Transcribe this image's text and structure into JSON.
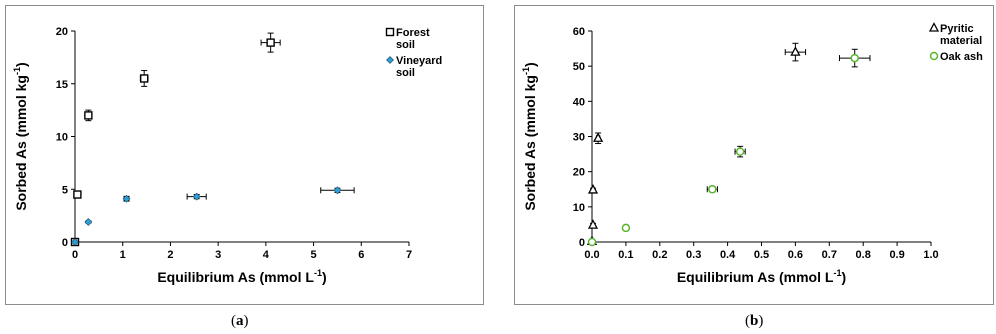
{
  "chart_data": [
    {
      "type": "scatter",
      "panel_label": "a",
      "xlabel": "Equilibrium As (mmol L",
      "xlabel_sup": "-1",
      "xlabel_end": ")",
      "ylabel": "Sorbed As (mmol kg",
      "ylabel_sup": "-1",
      "ylabel_end": ")",
      "xlim": [
        0,
        7
      ],
      "ylim": [
        0,
        20
      ],
      "xticks": [
        0,
        1,
        2,
        3,
        4,
        5,
        6,
        7
      ],
      "yticks": [
        0,
        5,
        10,
        15,
        20
      ],
      "legend_position": "top-right",
      "series": [
        {
          "name": "Forest soil",
          "legend_lines": [
            "Forest",
            "soil"
          ],
          "marker": "square-open",
          "color": "#000000",
          "points": [
            {
              "x": 0.0,
              "y": 0.0,
              "xerr": 0.0,
              "yerr": 0.1
            },
            {
              "x": 0.05,
              "y": 4.5,
              "xerr": 0.05,
              "yerr": 0.25
            },
            {
              "x": 0.28,
              "y": 12.0,
              "xerr": 0.05,
              "yerr": 0.5
            },
            {
              "x": 1.45,
              "y": 15.5,
              "xerr": 0.08,
              "yerr": 0.75
            },
            {
              "x": 4.1,
              "y": 18.9,
              "xerr": 0.2,
              "yerr": 0.9
            }
          ]
        },
        {
          "name": "Vineyard soil",
          "legend_lines": [
            "Vineyard",
            "soil"
          ],
          "marker": "diamond",
          "color": "#2e9ed6",
          "points": [
            {
              "x": 0.0,
              "y": 0.0,
              "xerr": 0.0,
              "yerr": 0.0
            },
            {
              "x": 0.28,
              "y": 1.9,
              "xerr": 0.0,
              "yerr": 0.1
            },
            {
              "x": 1.08,
              "y": 4.1,
              "xerr": 0.05,
              "yerr": 0.2
            },
            {
              "x": 2.55,
              "y": 4.3,
              "xerr": 0.2,
              "yerr": 0.2
            },
            {
              "x": 5.5,
              "y": 4.9,
              "xerr": 0.35,
              "yerr": 0.2
            }
          ]
        }
      ]
    },
    {
      "type": "scatter",
      "panel_label": "b",
      "xlabel": "Equilibrium As (mmol L",
      "xlabel_sup": "-1",
      "xlabel_end": ")",
      "ylabel": "Sorbed As (mmol kg",
      "ylabel_sup": "-1",
      "ylabel_end": ")",
      "xlim": [
        0,
        1
      ],
      "ylim": [
        0,
        60
      ],
      "xticks": [
        0.0,
        0.1,
        0.2,
        0.3,
        0.4,
        0.5,
        0.6,
        0.7,
        0.8,
        0.9,
        1.0
      ],
      "xtick_labels": [
        "0.0",
        "0.1",
        "0.2",
        "0.3",
        "0.4",
        "0.5",
        "0.6",
        "0.7",
        "0.8",
        "0.9",
        "1.0"
      ],
      "yticks": [
        0,
        10,
        20,
        30,
        40,
        50,
        60
      ],
      "legend_position": "top-right",
      "series": [
        {
          "name": "Pyritic material",
          "legend_lines": [
            "Pyritic",
            "material"
          ],
          "marker": "triangle-open",
          "color": "#000000",
          "points": [
            {
              "x": 0.0,
              "y": 0.2,
              "xerr": 0.0,
              "yerr": 0.3
            },
            {
              "x": 0.003,
              "y": 4.8,
              "xerr": 0.0,
              "yerr": 0.5
            },
            {
              "x": 0.003,
              "y": 14.8,
              "xerr": 0.0,
              "yerr": 0.5
            },
            {
              "x": 0.018,
              "y": 29.5,
              "xerr": 0.005,
              "yerr": 1.5
            },
            {
              "x": 0.6,
              "y": 54.0,
              "xerr": 0.03,
              "yerr": 2.5
            }
          ]
        },
        {
          "name": "Oak ash",
          "legend_lines": [
            "Oak ash"
          ],
          "marker": "circle-open",
          "color": "#5ab52e",
          "points": [
            {
              "x": 0.0,
              "y": 0.0,
              "xerr": 0.0,
              "yerr": 0.0
            },
            {
              "x": 0.1,
              "y": 4.0,
              "xerr": 0.005,
              "yerr": 0.4
            },
            {
              "x": 0.355,
              "y": 15.0,
              "xerr": 0.015,
              "yerr": 0.8
            },
            {
              "x": 0.437,
              "y": 25.7,
              "xerr": 0.015,
              "yerr": 1.5
            },
            {
              "x": 0.775,
              "y": 52.3,
              "xerr": 0.045,
              "yerr": 2.5
            }
          ]
        }
      ]
    }
  ],
  "captions": [
    {
      "open": "(",
      "label": "a",
      "close": ")"
    },
    {
      "open": "(",
      "label": "b",
      "close": ")"
    }
  ]
}
